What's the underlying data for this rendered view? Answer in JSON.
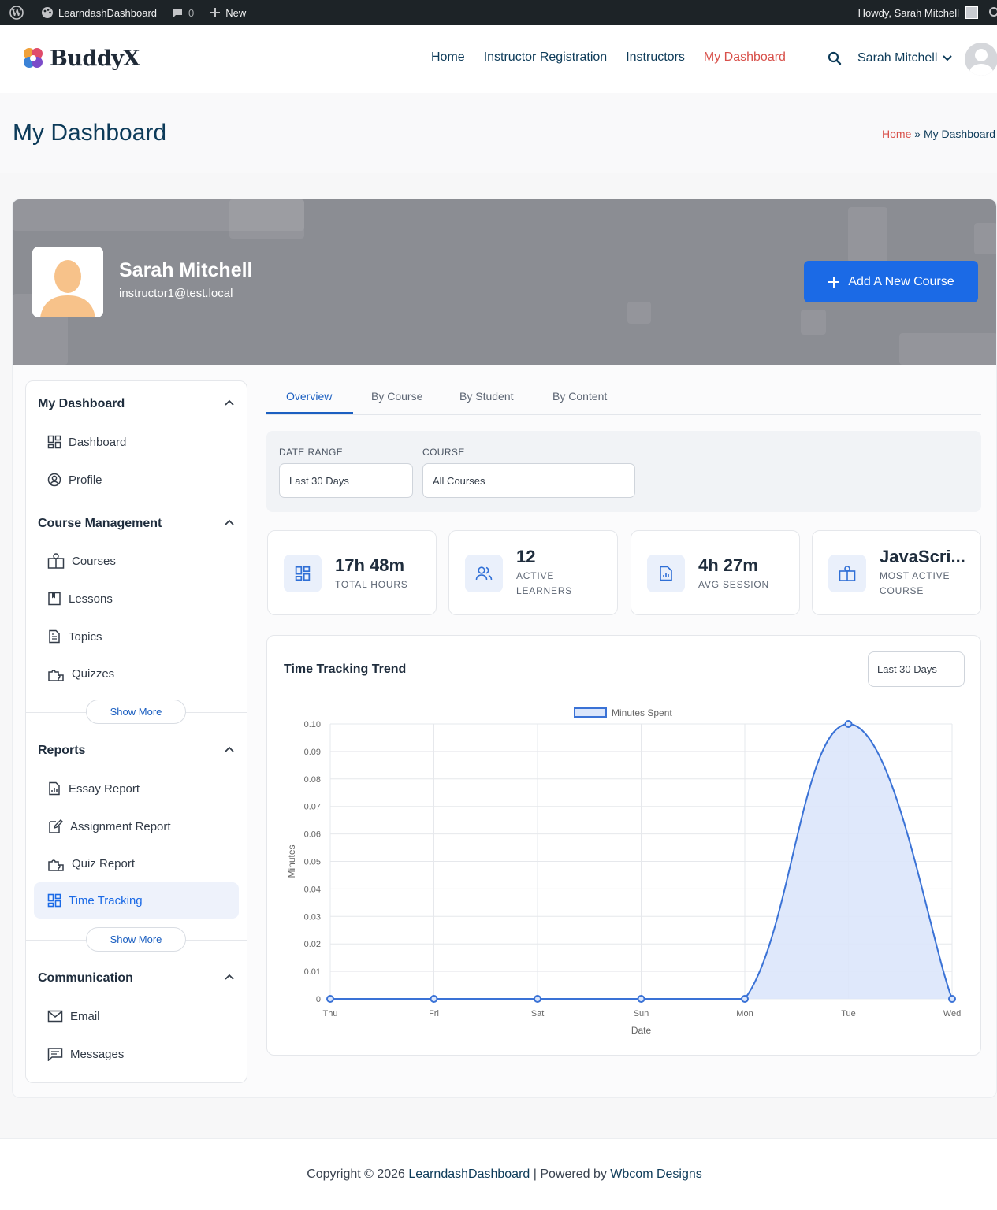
{
  "adminbar": {
    "site_name": "LearndashDashboard",
    "comments_count": "0",
    "new_label": "New",
    "howdy": "Howdy, Sarah Mitchell"
  },
  "header": {
    "logo_text": "BuddyX",
    "nav": [
      "Home",
      "Instructor Registration",
      "Instructors",
      "My Dashboard"
    ],
    "active_nav": "My Dashboard",
    "user_name": "Sarah Mitchell"
  },
  "page": {
    "title": "My Dashboard",
    "breadcrumb_home": "Home",
    "breadcrumb_sep": "»",
    "breadcrumb_current": "My Dashboard"
  },
  "profile": {
    "name": "Sarah Mitchell",
    "email": "instructor1@test.local",
    "add_course_label": "Add A New Course"
  },
  "sidebar": {
    "sections": [
      {
        "title": "My Dashboard",
        "items": [
          {
            "label": "Dashboard",
            "icon": "dashboard-icon"
          },
          {
            "label": "Profile",
            "icon": "profile-icon"
          }
        ]
      },
      {
        "title": "Course Management",
        "items": [
          {
            "label": "Courses",
            "icon": "courses-icon"
          },
          {
            "label": "Lessons",
            "icon": "lessons-icon"
          },
          {
            "label": "Topics",
            "icon": "topics-icon"
          },
          {
            "label": "Quizzes",
            "icon": "quizzes-icon"
          }
        ]
      },
      {
        "title": "Reports",
        "items": [
          {
            "label": "Essay Report",
            "icon": "essay-report-icon"
          },
          {
            "label": "Assignment Report",
            "icon": "assignment-report-icon"
          },
          {
            "label": "Quiz Report",
            "icon": "quiz-report-icon"
          },
          {
            "label": "Time Tracking",
            "icon": "time-tracking-icon",
            "active": true
          }
        ]
      },
      {
        "title": "Communication",
        "items": [
          {
            "label": "Email",
            "icon": "email-icon"
          },
          {
            "label": "Messages",
            "icon": "messages-icon"
          }
        ]
      }
    ],
    "show_more_label": "Show More"
  },
  "tabs": [
    "Overview",
    "By Course",
    "By Student",
    "By Content"
  ],
  "active_tab": "Overview",
  "filters": {
    "date_range_label": "DATE RANGE",
    "date_range_value": "Last 30 Days",
    "course_label": "COURSE",
    "course_value": "All Courses"
  },
  "stats": [
    {
      "value": "17h 48m",
      "label": "TOTAL HOURS",
      "icon": "grid-icon"
    },
    {
      "value": "12",
      "label": "ACTIVE LEARNERS",
      "icon": "users-icon"
    },
    {
      "value": "4h 27m",
      "label": "AVG SESSION",
      "icon": "report-icon"
    },
    {
      "value": "JavaScri...",
      "label": "MOST ACTIVE COURSE",
      "icon": "course-icon"
    }
  ],
  "chart_card": {
    "title": "Time Tracking Trend",
    "range_value": "Last 30 Days"
  },
  "chart_data": {
    "type": "line",
    "title": "",
    "xlabel": "Date",
    "ylabel": "Minutes",
    "categories": [
      "Thu",
      "Fri",
      "Sat",
      "Sun",
      "Mon",
      "Tue",
      "Wed"
    ],
    "series": [
      {
        "name": "Minutes Spent",
        "values": [
          0,
          0,
          0,
          0,
          0,
          0.1,
          0
        ]
      }
    ],
    "yticks": [
      "0",
      "0.01",
      "0.02",
      "0.03",
      "0.04",
      "0.05",
      "0.06",
      "0.07",
      "0.08",
      "0.09",
      "0.10"
    ],
    "ylim": [
      0,
      0.1
    ],
    "grid": true,
    "legend": "top-center",
    "fill": true,
    "line_color": "#3a72d6",
    "fill_color": "#dbe6fb"
  },
  "footer": {
    "copyright": "Copyright © 2026",
    "site_link": "LearndashDashboard",
    "separator": "| Powered by",
    "company_link": "Wbcom Designs"
  },
  "colors": {
    "accent": "#1b6ae6",
    "nav_active": "#d8504a",
    "heading": "#0d3b59"
  }
}
